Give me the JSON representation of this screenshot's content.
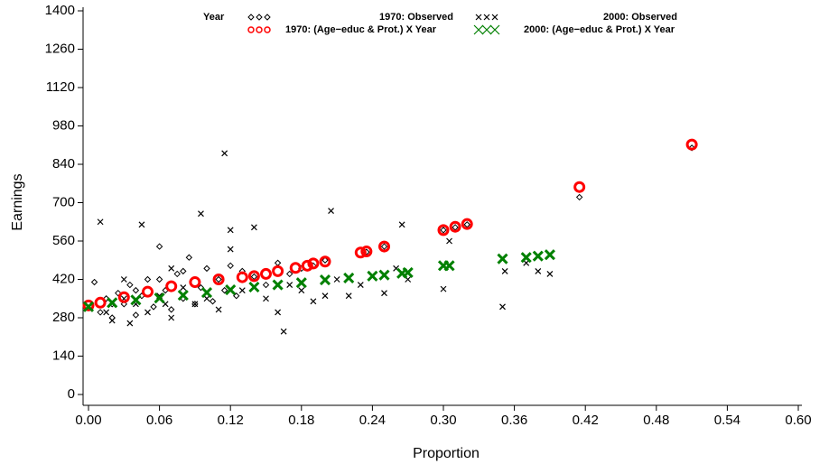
{
  "chart_data": {
    "type": "scatter",
    "x_label": "Proportion",
    "y_label": "Earnings",
    "legend_title": "Year",
    "xlim": [
      0,
      0.6
    ],
    "xticks": [
      {
        "value": 0,
        "label": "0.00"
      },
      {
        "value": 0.06,
        "label": "0.06"
      },
      {
        "value": 0.12,
        "label": "0.12"
      },
      {
        "value": 0.18,
        "label": "0.18"
      },
      {
        "value": 0.24,
        "label": "0.24"
      },
      {
        "value": 0.3,
        "label": "0.30"
      },
      {
        "value": 0.36,
        "label": "0.36"
      },
      {
        "value": 0.42,
        "label": "0.42"
      },
      {
        "value": 0.48,
        "label": "0.48"
      },
      {
        "value": 0.54,
        "label": "0.54"
      },
      {
        "value": 0.6,
        "label": "0.60"
      }
    ],
    "ylim": [
      0,
      1400
    ],
    "yticks": [
      0,
      140,
      280,
      420,
      560,
      700,
      840,
      980,
      1120,
      1260,
      1400
    ],
    "series": [
      {
        "name": "1970: Observed",
        "color": "#000000",
        "marker": "diamond",
        "x": [
          0.005,
          0.01,
          0.015,
          0.02,
          0.025,
          0.03,
          0.035,
          0.04,
          0.045,
          0.05,
          0.055,
          0.06,
          0.065,
          0.07,
          0.075,
          0.08,
          0.085,
          0.09,
          0.095,
          0.1,
          0.105,
          0.11,
          0.115,
          0.12,
          0.125,
          0.13,
          0.14,
          0.15,
          0.16,
          0.17,
          0.18,
          0.19,
          0.2,
          0.235,
          0.25,
          0.3,
          0.31,
          0.32,
          0.415,
          0.51,
          0.02,
          0.04,
          0.06,
          0.08,
          0.1
        ],
        "y": [
          410,
          300,
          350,
          280,
          370,
          330,
          400,
          290,
          360,
          420,
          320,
          540,
          380,
          310,
          440,
          350,
          500,
          330,
          390,
          460,
          340,
          420,
          380,
          470,
          360,
          450,
          430,
          400,
          480,
          440,
          460,
          470,
          490,
          520,
          540,
          600,
          610,
          620,
          720,
          900,
          330,
          380,
          420,
          450,
          360
        ]
      },
      {
        "name": "2000: Observed",
        "color": "#000000",
        "marker": "x",
        "x": [
          0.01,
          0.015,
          0.02,
          0.03,
          0.035,
          0.04,
          0.045,
          0.05,
          0.06,
          0.065,
          0.07,
          0.08,
          0.09,
          0.095,
          0.1,
          0.11,
          0.115,
          0.12,
          0.13,
          0.14,
          0.15,
          0.16,
          0.165,
          0.17,
          0.18,
          0.19,
          0.2,
          0.205,
          0.21,
          0.22,
          0.23,
          0.24,
          0.25,
          0.26,
          0.265,
          0.27,
          0.3,
          0.305,
          0.35,
          0.352,
          0.37,
          0.38,
          0.39,
          0.03,
          0.07,
          0.12
        ],
        "y": [
          630,
          300,
          270,
          350,
          260,
          330,
          620,
          300,
          360,
          330,
          280,
          390,
          330,
          660,
          350,
          310,
          880,
          600,
          380,
          610,
          350,
          300,
          230,
          400,
          380,
          340,
          360,
          670,
          420,
          360,
          400,
          430,
          370,
          460,
          620,
          420,
          385,
          560,
          320,
          450,
          480,
          450,
          440,
          420,
          460,
          530
        ]
      },
      {
        "name": "1970: (Age−educ & Prot.) X Year",
        "color": "#ff0000",
        "marker": "circle",
        "x": [
          0,
          0.01,
          0.03,
          0.05,
          0.07,
          0.09,
          0.11,
          0.13,
          0.14,
          0.15,
          0.16,
          0.175,
          0.185,
          0.19,
          0.2,
          0.23,
          0.235,
          0.25,
          0.3,
          0.31,
          0.32,
          0.415,
          0.51
        ],
        "y": [
          325,
          335,
          355,
          375,
          395,
          410,
          420,
          428,
          432,
          440,
          450,
          462,
          470,
          478,
          485,
          518,
          522,
          540,
          600,
          612,
          622,
          757,
          912
        ]
      },
      {
        "name": "2000: (Age−educ & Prot.) X Year",
        "color": "#008000",
        "marker": "bigx",
        "x": [
          0,
          0.02,
          0.04,
          0.06,
          0.08,
          0.1,
          0.12,
          0.14,
          0.16,
          0.18,
          0.2,
          0.22,
          0.24,
          0.25,
          0.265,
          0.27,
          0.3,
          0.305,
          0.35,
          0.37,
          0.38,
          0.39
        ],
        "y": [
          320,
          335,
          345,
          352,
          362,
          372,
          382,
          392,
          400,
          408,
          418,
          425,
          432,
          436,
          442,
          445,
          470,
          470,
          495,
          500,
          505,
          510
        ]
      }
    ]
  }
}
